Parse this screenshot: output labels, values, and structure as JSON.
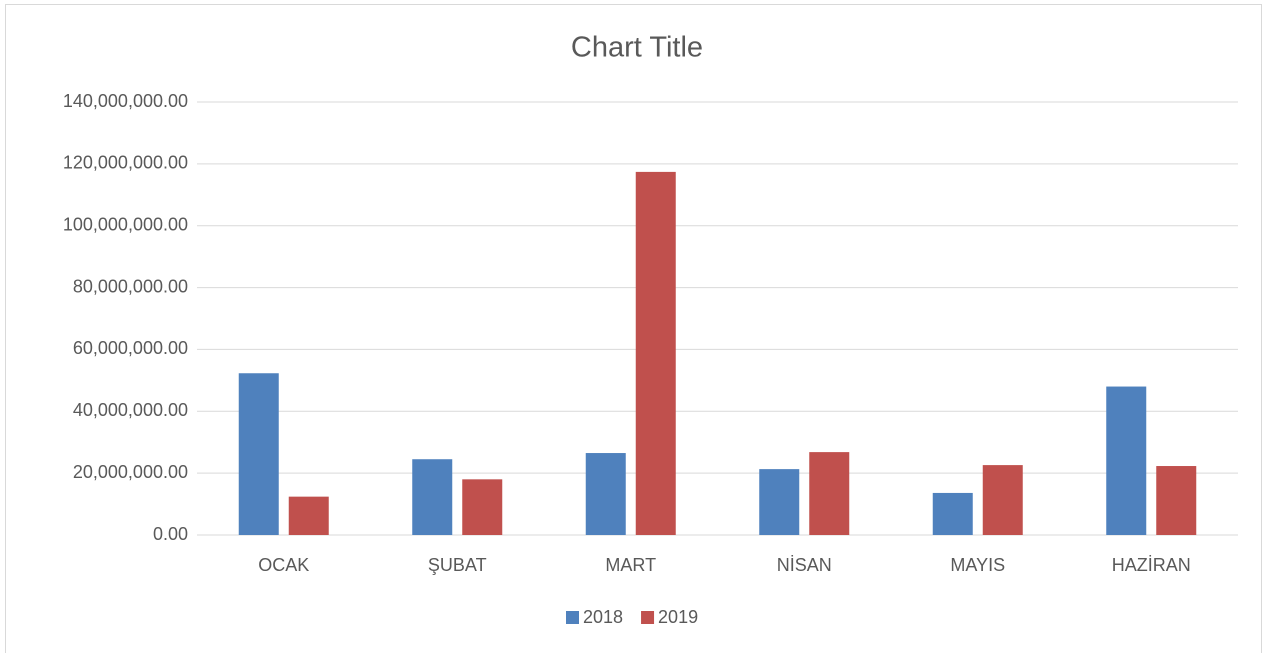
{
  "chart_data": {
    "type": "bar",
    "title": "Chart Title",
    "categories": [
      "OCAK",
      "ŞUBAT",
      "MART",
      "NİSAN",
      "MAYIS",
      "HAZİRAN"
    ],
    "series": [
      {
        "name": "2018",
        "color": "#4f81bd",
        "values": [
          52300000,
          24500000,
          26500000,
          21300000,
          13600000,
          48000000
        ]
      },
      {
        "name": "2019",
        "color": "#c0504d",
        "values": [
          12400000,
          18000000,
          117400000,
          26800000,
          22600000,
          22300000
        ]
      }
    ],
    "ylim": [
      0,
      140000000
    ],
    "yticks": [
      {
        "value": 0,
        "label": "0.00"
      },
      {
        "value": 20000000,
        "label": "20,000,000.00"
      },
      {
        "value": 40000000,
        "label": "40,000,000.00"
      },
      {
        "value": 60000000,
        "label": "60,000,000.00"
      },
      {
        "value": 80000000,
        "label": "80,000,000.00"
      },
      {
        "value": 100000000,
        "label": "100,000,000.00"
      },
      {
        "value": 120000000,
        "label": "120,000,000.00"
      },
      {
        "value": 140000000,
        "label": "140,000,000.00"
      }
    ],
    "grid": true,
    "legend": "bottom"
  }
}
